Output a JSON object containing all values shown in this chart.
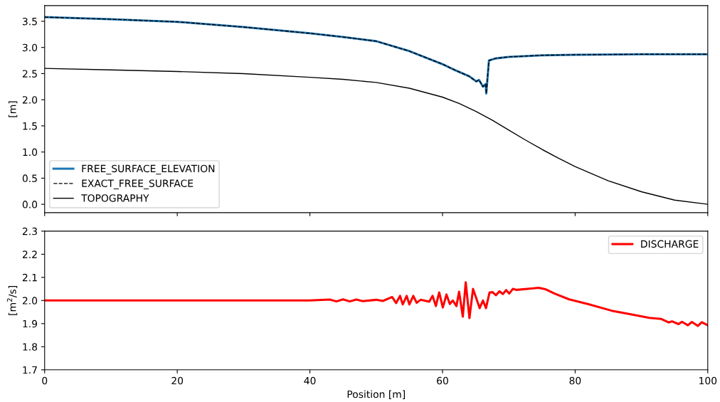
{
  "chart_data": [
    {
      "type": "line",
      "ylabel": "[m]",
      "xlim": [
        0,
        100
      ],
      "ylim": [
        -0.16,
        3.8
      ],
      "xticks": [
        0,
        20,
        40,
        60,
        80,
        100
      ],
      "yticks": [
        {
          "value": 0,
          "label": "0.0"
        },
        0.5,
        {
          "value": 1,
          "label": "1.0"
        },
        1.5,
        {
          "value": 2,
          "label": "2.0"
        },
        2.5,
        {
          "value": 3,
          "label": "3.0"
        },
        3.5
      ],
      "tick_labels": "y",
      "legend": "bottom left",
      "grid": false,
      "series": [
        {
          "name": "FREE_SURFACE_ELEVATION",
          "color": "#1f77b4",
          "line_style": "solid",
          "x": [
            0,
            10,
            20,
            30,
            40,
            45,
            50,
            55,
            60,
            62,
            64,
            65.1,
            65.5,
            66.1,
            66.5,
            66.6,
            67.0,
            68,
            70,
            75,
            80,
            90,
            100
          ],
          "values": [
            3.58,
            3.54,
            3.49,
            3.39,
            3.27,
            3.2,
            3.12,
            2.93,
            2.68,
            2.56,
            2.45,
            2.35,
            2.38,
            2.25,
            2.3,
            2.12,
            2.75,
            2.79,
            2.82,
            2.85,
            2.86,
            2.87,
            2.87
          ]
        },
        {
          "name": "EXACT_FREE_SURFACE",
          "color": "#000000",
          "line_style": "dashed",
          "x": [
            0,
            10,
            20,
            30,
            40,
            45,
            50,
            55,
            60,
            62,
            64,
            65.1,
            65.5,
            66.1,
            66.5,
            66.6,
            67.0,
            68,
            70,
            75,
            80,
            90,
            100
          ],
          "values": [
            3.58,
            3.54,
            3.49,
            3.39,
            3.27,
            3.2,
            3.12,
            2.93,
            2.68,
            2.56,
            2.45,
            2.35,
            2.38,
            2.25,
            2.3,
            2.12,
            2.75,
            2.79,
            2.82,
            2.85,
            2.86,
            2.87,
            2.87
          ]
        },
        {
          "name": "TOPOGRAPHY",
          "color": "#000000",
          "line_style": "solid",
          "x": [
            0,
            10,
            20,
            30,
            40,
            45,
            50,
            55,
            60,
            62.5,
            65,
            67.5,
            70,
            72.5,
            75,
            77.5,
            80,
            85,
            90,
            95,
            100
          ],
          "values": [
            2.6,
            2.57,
            2.54,
            2.5,
            2.43,
            2.39,
            2.33,
            2.22,
            2.05,
            1.93,
            1.78,
            1.61,
            1.42,
            1.23,
            1.05,
            0.88,
            0.72,
            0.45,
            0.24,
            0.08,
            0.0
          ]
        }
      ]
    },
    {
      "type": "line",
      "xlabel": "Position [m]",
      "ylabel": "[m$^{2}$/s]",
      "xlim": [
        0,
        100
      ],
      "ylim": [
        1.7,
        2.3
      ],
      "xticks": [
        0,
        20,
        40,
        60,
        80,
        100
      ],
      "yticks": [
        1.7,
        1.8,
        1.9,
        {
          "value": 2.0,
          "label": "2.0"
        },
        2.1,
        2.2,
        2.3
      ],
      "legend": "top right",
      "grid": false,
      "series": [
        {
          "name": "DISCHARGE",
          "color": "#ff0000",
          "line_style": "solid",
          "x": [
            0,
            30,
            40,
            43,
            44,
            45,
            46,
            47,
            48,
            50,
            51,
            52.4,
            53.0,
            53.6,
            54.0,
            54.6,
            55.0,
            55.6,
            56.1,
            56.7,
            58.0,
            58.5,
            59.0,
            59.5,
            60.05,
            60.6,
            61.1,
            61.55,
            62.1,
            62.5,
            63.06,
            63.5,
            64.06,
            64.6,
            65.6,
            66.1,
            66.55,
            67.1,
            67.55,
            68.05,
            68.6,
            69.1,
            69.6,
            70.06,
            70.6,
            71.2,
            73.4,
            74.5,
            75.5,
            76.9,
            79.1,
            81.9,
            85.5,
            88.4,
            91.2,
            93.0,
            94.1,
            94.6,
            95.6,
            96.1,
            97.0,
            97.6,
            98.5,
            99.1,
            100
          ],
          "values": [
            2.0,
            2.0,
            2.0,
            2.004,
            1.996,
            2.005,
            1.996,
            2.004,
            1.997,
            2.003,
            1.998,
            2.015,
            1.989,
            2.02,
            1.983,
            2.02,
            1.983,
            2.02,
            1.99,
            2.003,
            1.995,
            2.02,
            1.976,
            2.035,
            1.97,
            2.026,
            1.985,
            2.0,
            1.976,
            2.038,
            1.93,
            2.079,
            1.924,
            2.05,
            1.967,
            2.0,
            1.967,
            2.035,
            2.036,
            2.023,
            2.04,
            2.028,
            2.045,
            2.03,
            2.05,
            2.046,
            2.052,
            2.055,
            2.049,
            2.03,
            2.005,
            1.985,
            1.956,
            1.94,
            1.925,
            1.92,
            1.905,
            1.91,
            1.898,
            1.908,
            1.893,
            1.907,
            1.89,
            1.906,
            1.893
          ]
        }
      ]
    }
  ]
}
